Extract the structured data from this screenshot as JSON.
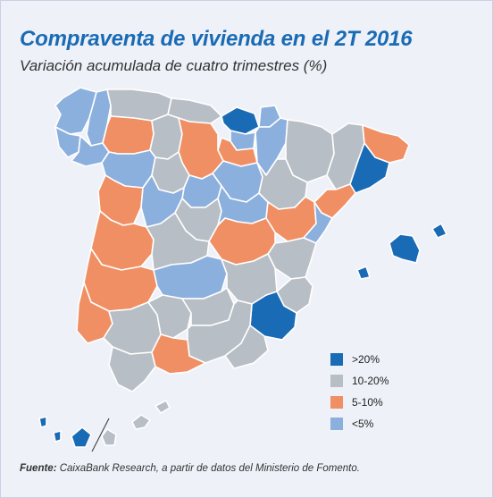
{
  "title": "Compraventa de vivienda en el 2T 2016",
  "subtitle": "Variación acumulada de cuatro trimestres (%)",
  "colors": {
    "gt20": "#1a6bb5",
    "r10_20": "#b8bec5",
    "r5_10": "#f08f63",
    "lt5": "#8cb0de",
    "background": "#eef1f8"
  },
  "legend": [
    {
      "label": ">20%",
      "color": "#1a6bb5"
    },
    {
      "label": "10-20%",
      "color": "#b8bec5"
    },
    {
      "label": "5-10%",
      "color": "#f08f63"
    },
    {
      "label": "<5%",
      "color": "#8cb0de"
    }
  ],
  "source": {
    "label": "Fuente:",
    "text": "CaixaBank Research, a partir de datos del Ministerio de Fomento."
  },
  "regions": [
    {
      "name": "A Coruña",
      "category": "lt5"
    },
    {
      "name": "Lugo",
      "category": "lt5"
    },
    {
      "name": "Pontevedra",
      "category": "lt5"
    },
    {
      "name": "Ourense",
      "category": "lt5"
    },
    {
      "name": "Asturias",
      "category": "r10_20"
    },
    {
      "name": "Cantabria",
      "category": "r10_20"
    },
    {
      "name": "Vizcaya",
      "category": "gt20"
    },
    {
      "name": "Guipúzcoa",
      "category": "lt5"
    },
    {
      "name": "Álava",
      "category": "lt5"
    },
    {
      "name": "Navarra",
      "category": "lt5"
    },
    {
      "name": "La Rioja",
      "category": "r5_10"
    },
    {
      "name": "León",
      "category": "r5_10"
    },
    {
      "name": "Palencia",
      "category": "r10_20"
    },
    {
      "name": "Burgos",
      "category": "r5_10"
    },
    {
      "name": "Zamora",
      "category": "lt5"
    },
    {
      "name": "Valladolid",
      "category": "r10_20"
    },
    {
      "name": "Soria",
      "category": "lt5"
    },
    {
      "name": "Salamanca",
      "category": "r5_10"
    },
    {
      "name": "Segovia",
      "category": "lt5"
    },
    {
      "name": "Ávila",
      "category": "lt5"
    },
    {
      "name": "Madrid",
      "category": "r10_20"
    },
    {
      "name": "Guadalajara",
      "category": "lt5"
    },
    {
      "name": "Huesca",
      "category": "r10_20"
    },
    {
      "name": "Zaragoza",
      "category": "r10_20"
    },
    {
      "name": "Teruel",
      "category": "r5_10"
    },
    {
      "name": "Lleida",
      "category": "r10_20"
    },
    {
      "name": "Girona",
      "category": "r5_10"
    },
    {
      "name": "Barcelona",
      "category": "gt20"
    },
    {
      "name": "Tarragona",
      "category": "r5_10"
    },
    {
      "name": "Castellón",
      "category": "lt5"
    },
    {
      "name": "Valencia",
      "category": "r10_20"
    },
    {
      "name": "Alicante",
      "category": "r10_20"
    },
    {
      "name": "Murcia",
      "category": "gt20"
    },
    {
      "name": "Cáceres",
      "category": "r5_10"
    },
    {
      "name": "Badajoz",
      "category": "r5_10"
    },
    {
      "name": "Toledo",
      "category": "r10_20"
    },
    {
      "name": "Cuenca",
      "category": "r5_10"
    },
    {
      "name": "Ciudad Real",
      "category": "lt5"
    },
    {
      "name": "Albacete",
      "category": "r10_20"
    },
    {
      "name": "Huelva",
      "category": "r5_10"
    },
    {
      "name": "Sevilla",
      "category": "r10_20"
    },
    {
      "name": "Córdoba",
      "category": "r10_20"
    },
    {
      "name": "Jaén",
      "category": "r10_20"
    },
    {
      "name": "Granada",
      "category": "r10_20"
    },
    {
      "name": "Almería",
      "category": "r10_20"
    },
    {
      "name": "Cádiz",
      "category": "r10_20"
    },
    {
      "name": "Málaga",
      "category": "r5_10"
    },
    {
      "name": "Baleares",
      "category": "gt20"
    },
    {
      "name": "Santa Cruz de Tenerife",
      "category": "gt20"
    },
    {
      "name": "Las Palmas",
      "category": "r10_20"
    }
  ]
}
